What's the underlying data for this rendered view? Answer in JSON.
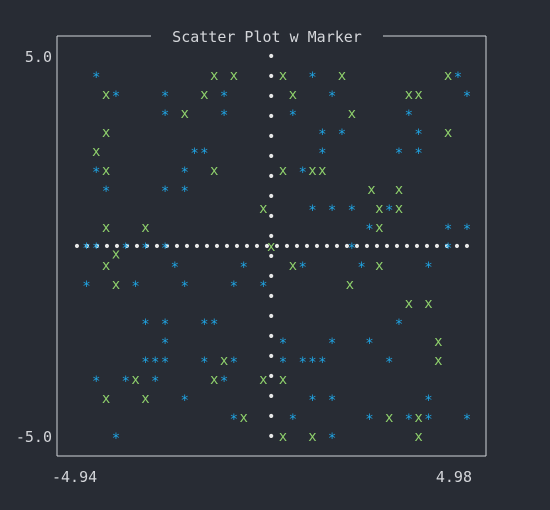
{
  "colors": {
    "background": "#282c34",
    "frame": "#d0d3d8",
    "text": "#d4d6da",
    "axis_dots": "#e8e8e8",
    "series_star": "#1fa6e6",
    "series_x": "#8fd16c"
  },
  "chart_data": {
    "type": "scatter",
    "title": "Scatter Plot w Marker",
    "xlabel": "",
    "ylabel": "",
    "xlim": [
      -4.94,
      4.98
    ],
    "ylim": [
      -5.0,
      5.0
    ],
    "x_tick_labels": [
      "-4.94",
      "4.98"
    ],
    "y_tick_labels": [
      "5.0",
      "-5.0"
    ],
    "grid": false,
    "legend": "none",
    "reference_lines": {
      "x": 0.0,
      "y": 0.0,
      "marker": "•"
    },
    "series": [
      {
        "marker": "*",
        "points": [
          [
            -4.45,
            4.5
          ],
          [
            -3.95,
            4.0
          ],
          [
            -2.7,
            4.0
          ],
          [
            -1.2,
            4.0
          ],
          [
            1.05,
            4.5
          ],
          [
            4.75,
            4.5
          ],
          [
            1.55,
            4.0
          ],
          [
            4.98,
            4.0
          ],
          [
            -2.7,
            3.5
          ],
          [
            -1.2,
            3.5
          ],
          [
            0.55,
            3.5
          ],
          [
            3.5,
            3.5
          ],
          [
            1.3,
            3.0
          ],
          [
            1.8,
            3.0
          ],
          [
            3.75,
            3.0
          ],
          [
            -1.95,
            2.5
          ],
          [
            -1.7,
            2.5
          ],
          [
            1.3,
            2.5
          ],
          [
            3.25,
            2.5
          ],
          [
            3.75,
            2.5
          ],
          [
            -4.45,
            2.0
          ],
          [
            -2.2,
            2.0
          ],
          [
            0.8,
            2.0
          ],
          [
            -4.2,
            1.5
          ],
          [
            -2.7,
            1.5
          ],
          [
            -2.2,
            1.5
          ],
          [
            1.05,
            1.0
          ],
          [
            1.55,
            1.0
          ],
          [
            2.05,
            1.0
          ],
          [
            3.0,
            1.0
          ],
          [
            2.5,
            0.5
          ],
          [
            4.5,
            0.5
          ],
          [
            4.98,
            0.5
          ],
          [
            -4.7,
            0.0
          ],
          [
            -4.45,
            0.0
          ],
          [
            -3.7,
            0.0
          ],
          [
            -3.2,
            0.0
          ],
          [
            -2.7,
            0.0
          ],
          [
            2.05,
            0.0
          ],
          [
            4.5,
            0.0
          ],
          [
            -2.45,
            -0.5
          ],
          [
            -0.7,
            -0.5
          ],
          [
            0.8,
            -0.5
          ],
          [
            2.3,
            -0.5
          ],
          [
            4.0,
            -0.5
          ],
          [
            -4.7,
            -1.0
          ],
          [
            -3.45,
            -1.0
          ],
          [
            -2.2,
            -1.0
          ],
          [
            -0.95,
            -1.0
          ],
          [
            -0.2,
            -1.0
          ],
          [
            -3.2,
            -2.0
          ],
          [
            -2.7,
            -2.0
          ],
          [
            -1.7,
            -2.0
          ],
          [
            -1.45,
            -2.0
          ],
          [
            3.25,
            -2.0
          ],
          [
            -2.7,
            -2.5
          ],
          [
            0.3,
            -2.5
          ],
          [
            1.55,
            -2.5
          ],
          [
            2.5,
            -2.5
          ],
          [
            -3.2,
            -3.0
          ],
          [
            -2.95,
            -3.0
          ],
          [
            -2.7,
            -3.0
          ],
          [
            -1.7,
            -3.0
          ],
          [
            -0.95,
            -3.0
          ],
          [
            0.3,
            -3.0
          ],
          [
            0.8,
            -3.0
          ],
          [
            1.05,
            -3.0
          ],
          [
            1.3,
            -3.0
          ],
          [
            3.0,
            -3.0
          ],
          [
            -4.45,
            -3.5
          ],
          [
            -3.7,
            -3.5
          ],
          [
            -2.95,
            -3.5
          ],
          [
            -1.2,
            -3.5
          ],
          [
            -2.2,
            -4.0
          ],
          [
            1.05,
            -4.0
          ],
          [
            1.55,
            -4.0
          ],
          [
            4.0,
            -4.0
          ],
          [
            -0.95,
            -4.5
          ],
          [
            0.55,
            -4.5
          ],
          [
            2.5,
            -4.5
          ],
          [
            3.5,
            -4.5
          ],
          [
            4.0,
            -4.5
          ],
          [
            4.98,
            -4.5
          ],
          [
            -3.95,
            -5.0
          ],
          [
            1.55,
            -5.0
          ]
        ]
      },
      {
        "marker": "x",
        "points": [
          [
            -1.45,
            4.5
          ],
          [
            -0.95,
            4.5
          ],
          [
            0.3,
            4.5
          ],
          [
            1.8,
            4.5
          ],
          [
            4.5,
            4.5
          ],
          [
            -4.2,
            4.0
          ],
          [
            -1.7,
            4.0
          ],
          [
            0.55,
            4.0
          ],
          [
            3.5,
            4.0
          ],
          [
            3.75,
            4.0
          ],
          [
            -2.2,
            3.5
          ],
          [
            2.05,
            3.5
          ],
          [
            -4.2,
            3.0
          ],
          [
            4.5,
            3.0
          ],
          [
            -4.45,
            2.5
          ],
          [
            -4.2,
            2.0
          ],
          [
            -1.45,
            2.0
          ],
          [
            0.3,
            2.0
          ],
          [
            1.05,
            2.0
          ],
          [
            1.3,
            2.0
          ],
          [
            2.55,
            1.5
          ],
          [
            3.25,
            1.5
          ],
          [
            -0.2,
            1.0
          ],
          [
            2.75,
            1.0
          ],
          [
            3.25,
            1.0
          ],
          [
            -4.2,
            0.5
          ],
          [
            -3.2,
            0.5
          ],
          [
            2.75,
            0.5
          ],
          [
            0.0,
            0.0
          ],
          [
            -3.95,
            -0.2
          ],
          [
            0.55,
            -0.5
          ],
          [
            2.75,
            -0.5
          ],
          [
            -4.2,
            -0.5
          ],
          [
            -3.95,
            -1.0
          ],
          [
            2.0,
            -1.0
          ],
          [
            4.0,
            -1.5
          ],
          [
            3.5,
            -1.5
          ],
          [
            4.25,
            -2.5
          ],
          [
            -1.2,
            -3.0
          ],
          [
            4.25,
            -3.0
          ],
          [
            -3.45,
            -3.5
          ],
          [
            -1.45,
            -3.5
          ],
          [
            -0.2,
            -3.5
          ],
          [
            0.3,
            -3.5
          ],
          [
            -4.2,
            -4.0
          ],
          [
            -3.2,
            -4.0
          ],
          [
            -0.7,
            -4.5
          ],
          [
            3.0,
            -4.5
          ],
          [
            3.75,
            -4.5
          ],
          [
            0.3,
            -5.0
          ],
          [
            1.05,
            -5.0
          ],
          [
            3.75,
            -5.0
          ]
        ]
      }
    ]
  }
}
